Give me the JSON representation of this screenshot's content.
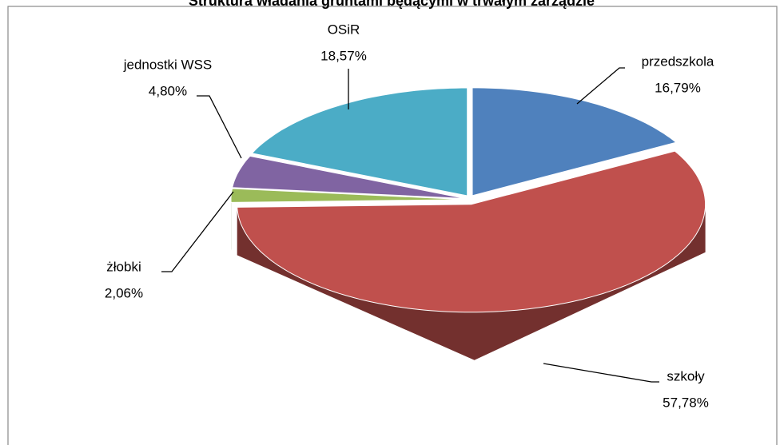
{
  "chart_data": {
    "type": "pie3d",
    "title": "Struktura władania gruntami będącymi w trwałym zarządzie",
    "categories": [
      "przedszkola",
      "szkoły",
      "żłobki",
      "jednostki WSS",
      "OSiR"
    ],
    "values": [
      16.79,
      57.78,
      2.06,
      4.8,
      18.57
    ],
    "value_labels": [
      "16,79%",
      "57,78%",
      "2,06%",
      "4,80%",
      "18,57%"
    ],
    "colors": [
      "#4f81bd",
      "#c0504d",
      "#9bbb59",
      "#8064a2",
      "#4bacc6"
    ]
  }
}
